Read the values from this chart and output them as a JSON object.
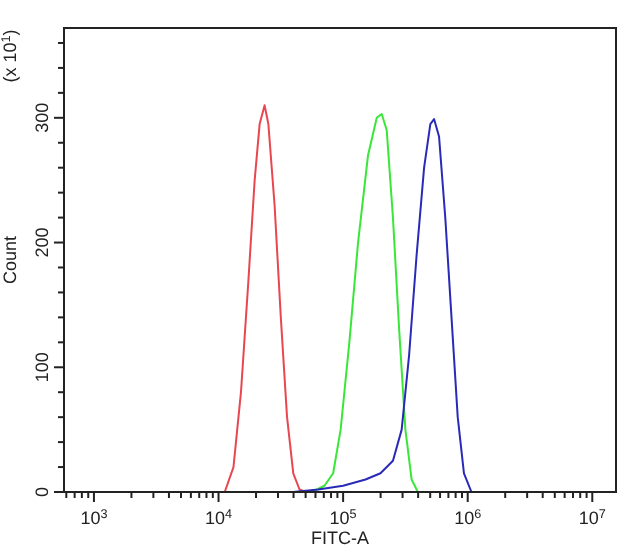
{
  "chart_data": {
    "type": "line",
    "xlabel": "FITC-A",
    "ylabel": "Count",
    "annotations": [
      "(x 10$^{1}$)"
    ],
    "log": "x",
    "grid": false,
    "marker": "none",
    "line_style": "solid",
    "xlim": [
      575,
      15500000
    ],
    "ylim": [
      0,
      372
    ],
    "xticks": [
      {
        "value": 600,
        "label": null
      },
      {
        "value": 700,
        "label": null
      },
      {
        "value": 800,
        "label": null
      },
      {
        "value": 900,
        "label": null
      },
      {
        "value": 1000,
        "label": "10$^{3}$"
      },
      {
        "value": 2000,
        "label": null
      },
      {
        "value": 3000,
        "label": null
      },
      {
        "value": 4000,
        "label": null
      },
      {
        "value": 5000,
        "label": null
      },
      {
        "value": 6000,
        "label": null
      },
      {
        "value": 7000,
        "label": null
      },
      {
        "value": 8000,
        "label": null
      },
      {
        "value": 9000,
        "label": null
      },
      {
        "value": 10000,
        "label": "10$^{4}$"
      },
      {
        "value": 20000,
        "label": null
      },
      {
        "value": 30000,
        "label": null
      },
      {
        "value": 40000,
        "label": null
      },
      {
        "value": 50000,
        "label": null
      },
      {
        "value": 60000,
        "label": null
      },
      {
        "value": 70000,
        "label": null
      },
      {
        "value": 80000,
        "label": null
      },
      {
        "value": 90000,
        "label": null
      },
      {
        "value": 100000,
        "label": "10$^{5}$"
      },
      {
        "value": 200000,
        "label": null
      },
      {
        "value": 300000,
        "label": null
      },
      {
        "value": 400000,
        "label": null
      },
      {
        "value": 500000,
        "label": null
      },
      {
        "value": 600000,
        "label": null
      },
      {
        "value": 700000,
        "label": null
      },
      {
        "value": 800000,
        "label": null
      },
      {
        "value": 900000,
        "label": null
      },
      {
        "value": 1000000,
        "label": "10$^{6}$"
      },
      {
        "value": 2000000,
        "label": null
      },
      {
        "value": 3000000,
        "label": null
      },
      {
        "value": 4000000,
        "label": null
      },
      {
        "value": 5000000,
        "label": null
      },
      {
        "value": 6000000,
        "label": null
      },
      {
        "value": 7000000,
        "label": null
      },
      {
        "value": 8000000,
        "label": null
      },
      {
        "value": 9000000,
        "label": null
      },
      {
        "value": 10000000,
        "label": "10$^{7}$"
      }
    ],
    "yticks": [
      0,
      {
        "value": 20,
        "label": null
      },
      {
        "value": 40,
        "label": null
      },
      {
        "value": 60,
        "label": null
      },
      {
        "value": 80,
        "label": null
      },
      100,
      {
        "value": 120,
        "label": null
      },
      {
        "value": 140,
        "label": null
      },
      {
        "value": 160,
        "label": null
      },
      {
        "value": 180,
        "label": null
      },
      200,
      {
        "value": 220,
        "label": null
      },
      {
        "value": 240,
        "label": null
      },
      {
        "value": 260,
        "label": null
      },
      {
        "value": 280,
        "label": null
      },
      300,
      {
        "value": 320,
        "label": null
      },
      {
        "value": 340,
        "label": null
      },
      {
        "value": 360,
        "label": null
      }
    ],
    "series": [
      {
        "color": "#e8474f",
        "x": [
          11220,
          13180,
          15140,
          17380,
          19500,
          21380,
          23440,
          25120,
          28180,
          31620,
          35480,
          39810,
          44670,
          50120
        ],
        "values": [
          0,
          20,
          80,
          170,
          250,
          295,
          310,
          295,
          230,
          140,
          60,
          15,
          2,
          0
        ]
      },
      {
        "color": "#39e639",
        "x": [
          56230,
          70790,
          83180,
          95500,
          112200,
          131800,
          158500,
          186200,
          204200,
          223900,
          251200,
          281800,
          316200,
          354800,
          398100
        ],
        "values": [
          0,
          5,
          15,
          50,
          120,
          200,
          270,
          300,
          303,
          290,
          220,
          130,
          50,
          10,
          0
        ]
      },
      {
        "color": "#2a2ab8",
        "x": [
          39810,
          63100,
          100000,
          151400,
          199500,
          251200,
          295100,
          338800,
          389000,
          446700,
          501200,
          537000,
          588800,
          660700,
          741300,
          831800,
          933300,
          1072000
        ],
        "values": [
          0,
          2,
          5,
          10,
          15,
          25,
          50,
          110,
          190,
          260,
          295,
          299,
          285,
          220,
          140,
          60,
          15,
          0
        ]
      }
    ]
  }
}
